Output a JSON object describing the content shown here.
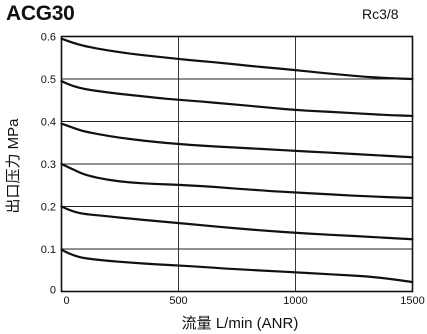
{
  "header": {
    "model": "ACG30",
    "port_size": "Rc3/8"
  },
  "chart_data": {
    "type": "line",
    "title": "",
    "xlabel": "流量 L/min (ANR)",
    "ylabel": "出口压力 MPa",
    "xlim": [
      0,
      1500
    ],
    "ylim": [
      0,
      0.6
    ],
    "x_ticks": [
      "0",
      "500",
      "1000",
      "1500"
    ],
    "y_ticks": [
      "0",
      "0.1",
      "0.2",
      "0.3",
      "0.4",
      "0.5",
      "0.6"
    ],
    "grid": true,
    "series": [
      {
        "x": [
          0,
          50,
          100,
          200,
          300,
          400,
          500,
          600,
          700,
          800,
          900,
          1000,
          1100,
          1200,
          1300,
          1400,
          1500
        ],
        "values": [
          0.595,
          0.585,
          0.577,
          0.567,
          0.559,
          0.553,
          0.547,
          0.542,
          0.537,
          0.531,
          0.526,
          0.521,
          0.515,
          0.51,
          0.505,
          0.502,
          0.5
        ]
      },
      {
        "x": [
          0,
          50,
          100,
          200,
          300,
          400,
          500,
          600,
          700,
          800,
          900,
          1000,
          1100,
          1200,
          1300,
          1400,
          1500
        ],
        "values": [
          0.495,
          0.483,
          0.476,
          0.468,
          0.462,
          0.456,
          0.451,
          0.447,
          0.442,
          0.437,
          0.432,
          0.427,
          0.424,
          0.421,
          0.418,
          0.415,
          0.413
        ]
      },
      {
        "x": [
          0,
          50,
          100,
          200,
          300,
          400,
          500,
          600,
          700,
          800,
          900,
          1000,
          1100,
          1200,
          1300,
          1400,
          1500
        ],
        "values": [
          0.395,
          0.385,
          0.376,
          0.366,
          0.358,
          0.352,
          0.347,
          0.343,
          0.34,
          0.337,
          0.334,
          0.331,
          0.328,
          0.325,
          0.322,
          0.319,
          0.316
        ]
      },
      {
        "x": [
          0,
          50,
          100,
          200,
          300,
          400,
          500,
          600,
          700,
          800,
          900,
          1000,
          1100,
          1200,
          1300,
          1400,
          1500
        ],
        "values": [
          0.3,
          0.287,
          0.274,
          0.262,
          0.256,
          0.253,
          0.251,
          0.248,
          0.244,
          0.24,
          0.236,
          0.233,
          0.23,
          0.227,
          0.224,
          0.222,
          0.22
        ]
      },
      {
        "x": [
          0,
          50,
          100,
          200,
          300,
          400,
          500,
          600,
          700,
          800,
          900,
          1000,
          1100,
          1200,
          1300,
          1400,
          1500
        ],
        "values": [
          0.2,
          0.188,
          0.182,
          0.177,
          0.171,
          0.166,
          0.161,
          0.156,
          0.151,
          0.146,
          0.142,
          0.138,
          0.135,
          0.132,
          0.129,
          0.126,
          0.123
        ]
      },
      {
        "x": [
          0,
          50,
          100,
          200,
          300,
          400,
          500,
          600,
          700,
          800,
          900,
          1000,
          1100,
          1200,
          1300,
          1400,
          1500
        ],
        "values": [
          0.098,
          0.085,
          0.078,
          0.072,
          0.068,
          0.064,
          0.061,
          0.058,
          0.054,
          0.051,
          0.048,
          0.045,
          0.042,
          0.039,
          0.036,
          0.03,
          0.022
        ]
      }
    ]
  }
}
